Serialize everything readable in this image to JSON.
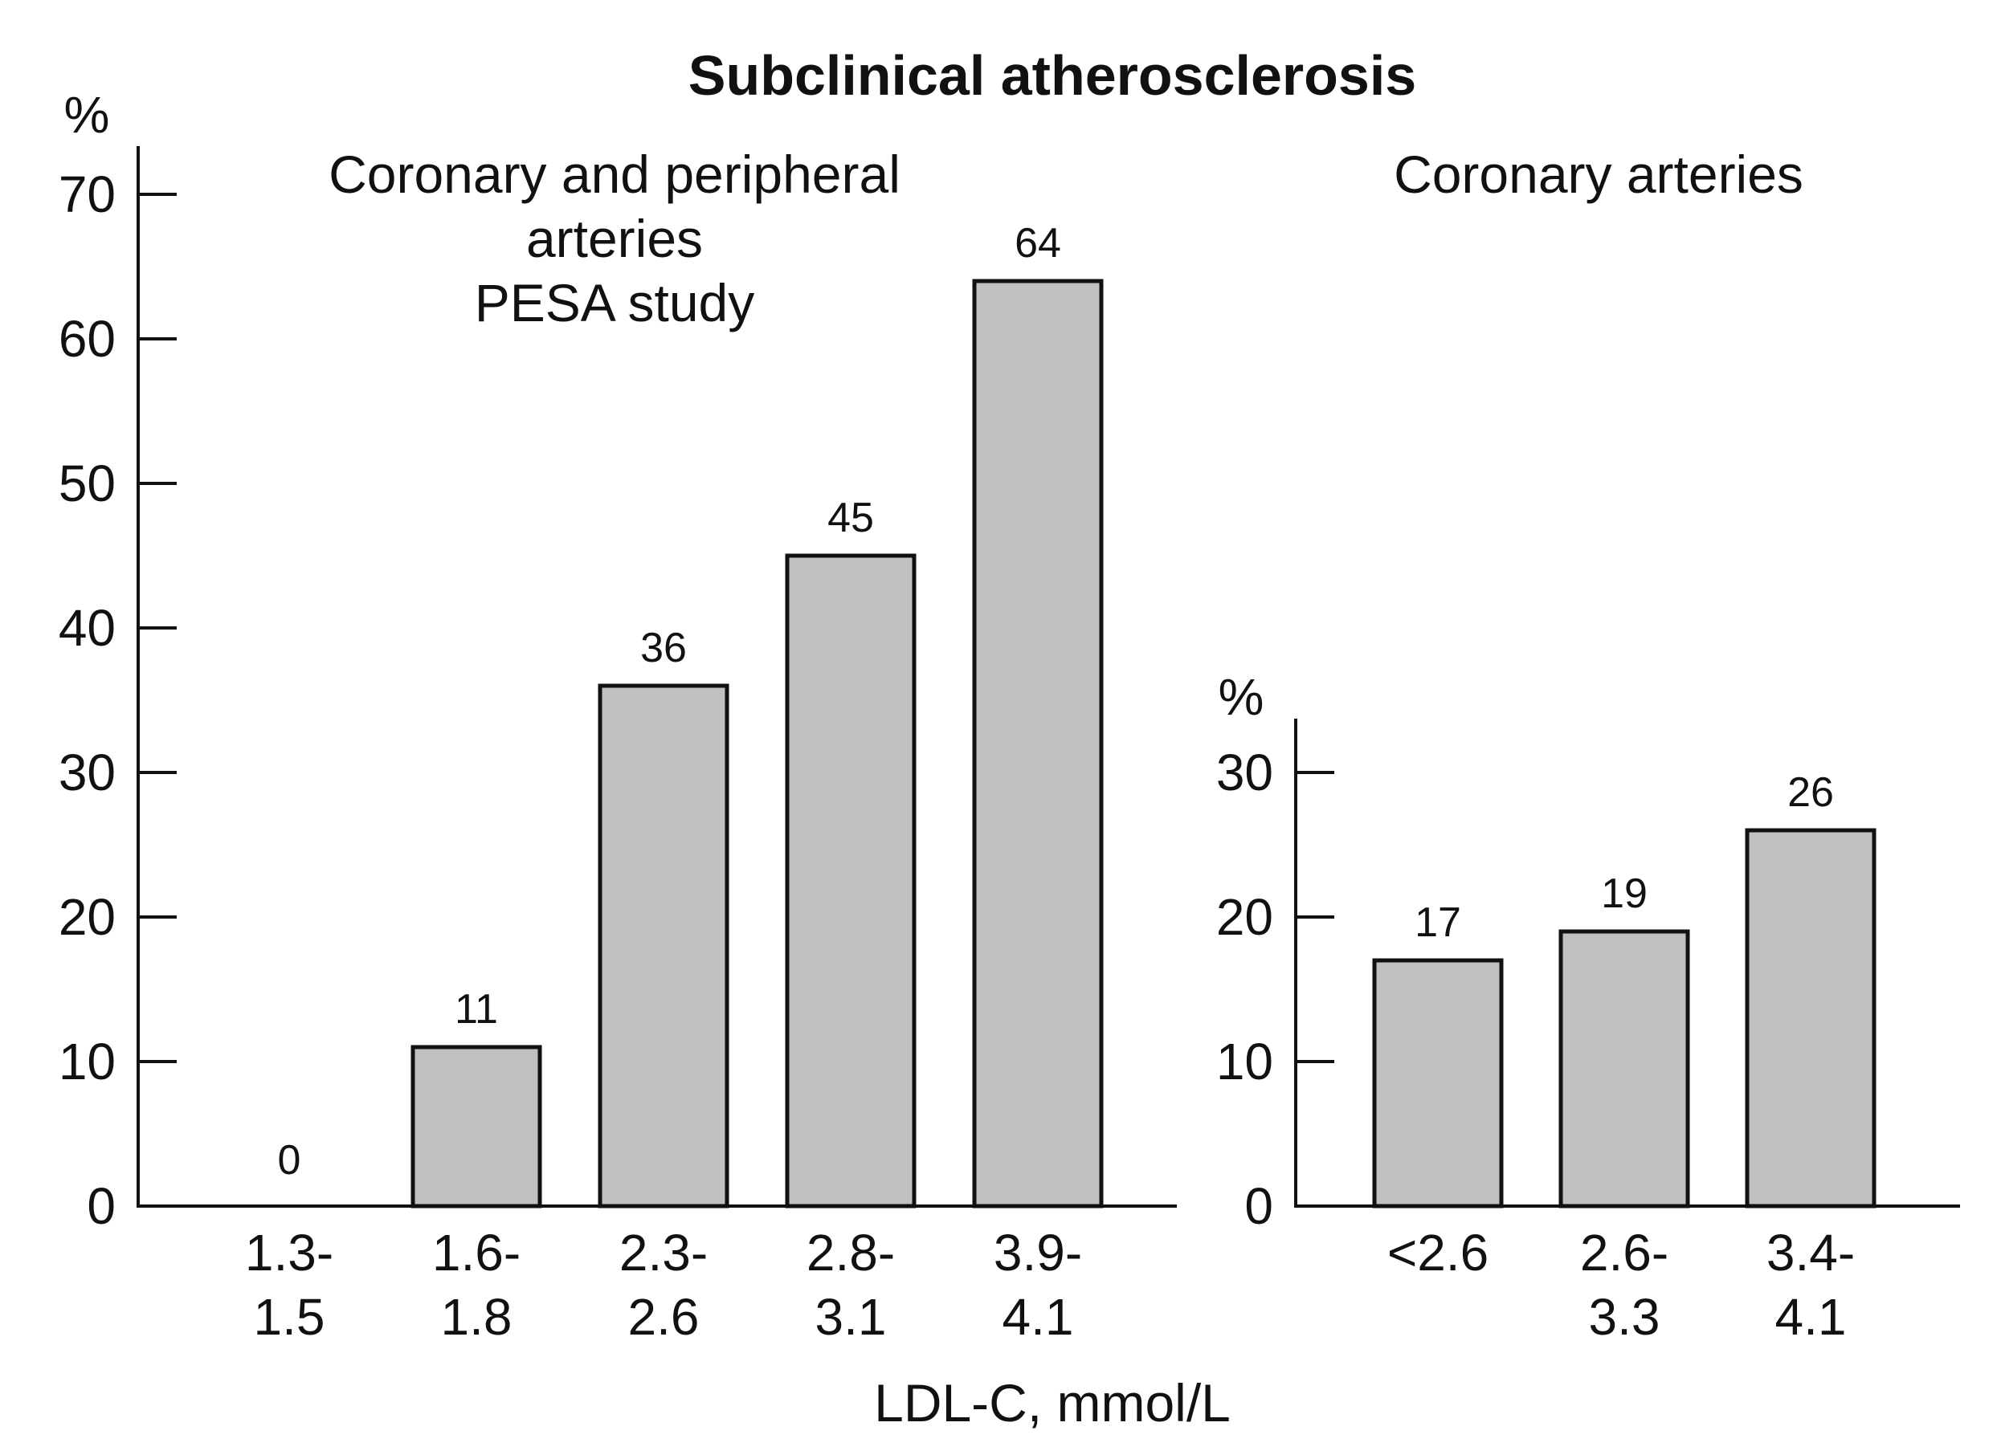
{
  "title": "Subclinical atherosclerosis",
  "xlabel": "LDL-C, mmol/L",
  "colors": {
    "bar_fill": "#c0c0c0",
    "bar_stroke": "#111111",
    "text": "#111111"
  },
  "chart_data": [
    {
      "type": "bar",
      "subtitle_lines": [
        "Coronary and peripheral",
        "arteries",
        "PESA study"
      ],
      "ylabel": "%",
      "ylim": [
        0,
        70
      ],
      "yticks": [
        0,
        10,
        20,
        30,
        40,
        50,
        60,
        70
      ],
      "categories": [
        [
          "1.3-",
          "1.5"
        ],
        [
          "1.6-",
          "1.8"
        ],
        [
          "2.3-",
          "2.6"
        ],
        [
          "2.8-",
          "3.1"
        ],
        [
          "3.9-",
          "4.1"
        ]
      ],
      "values": [
        0,
        11,
        36,
        45,
        64
      ],
      "grid": false
    },
    {
      "type": "bar",
      "subtitle_lines": [
        "Coronary arteries"
      ],
      "ylabel": "%",
      "ylim": [
        0,
        30
      ],
      "yticks": [
        0,
        10,
        20,
        30
      ],
      "categories": [
        [
          "<2.6"
        ],
        [
          "2.6-",
          "3.3"
        ],
        [
          "3.4-",
          "4.1"
        ]
      ],
      "values": [
        17,
        19,
        26
      ],
      "grid": false
    }
  ]
}
